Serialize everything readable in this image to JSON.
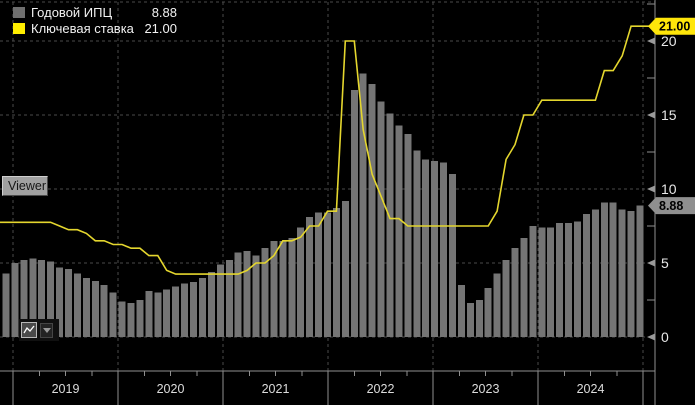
{
  "colors": {
    "background": "#000000",
    "bar": "#757575",
    "bar_swatch": "#6f6f6f",
    "rate_line": "#e4d62e",
    "rate_swatch": "#ffee00",
    "rate_badge_bg": "#ffe60a",
    "cpi_badge_bg": "#8f8f8f",
    "badge_text": "#000000",
    "gridline": "#4a4a4a",
    "axis": "#8f8f8f",
    "tick_label": "#e8e8e8",
    "year_label": "#dcdcdc"
  },
  "legend": {
    "items": [
      {
        "label": "Годовой ИПЦ",
        "value": "8.88"
      },
      {
        "label": "Ключевая ставка",
        "value": "21.00"
      }
    ]
  },
  "right_axis": {
    "rate_badge": "21.00",
    "cpi_badge": "8.88"
  },
  "tools": {
    "viewer_label": "Viewer"
  },
  "chart_data": {
    "type": "bar",
    "periodicity": "monthly",
    "start_month": "2018-12",
    "end_month": "2024-11",
    "years": [
      "2019",
      "2020",
      "2021",
      "2022",
      "2023",
      "2024"
    ],
    "y_ticks": [
      0,
      5,
      10,
      15,
      20
    ],
    "y_minor_ticks": [
      2.5,
      7.5,
      12.5,
      17.5,
      22.5
    ],
    "ylim": [
      -2.3,
      22.7
    ],
    "grid": true,
    "legend_position": "top-left",
    "series": [
      {
        "name": "Годовой ИПЦ",
        "type": "bar",
        "last_value": 8.88,
        "values": [
          4.3,
          5.0,
          5.2,
          5.3,
          5.2,
          5.1,
          4.7,
          4.6,
          4.3,
          4.0,
          3.8,
          3.5,
          3.0,
          2.4,
          2.3,
          2.5,
          3.1,
          3.0,
          3.2,
          3.4,
          3.6,
          3.7,
          4.0,
          4.4,
          4.9,
          5.2,
          5.7,
          5.8,
          5.5,
          6.0,
          6.5,
          6.5,
          6.7,
          7.4,
          8.1,
          8.4,
          8.4,
          8.7,
          9.2,
          16.7,
          17.8,
          17.1,
          15.9,
          15.1,
          14.3,
          13.7,
          12.6,
          12.0,
          11.9,
          11.8,
          11.0,
          3.5,
          2.3,
          2.5,
          3.3,
          4.3,
          5.2,
          6.0,
          6.7,
          7.5,
          7.4,
          7.4,
          7.7,
          7.7,
          7.8,
          8.3,
          8.6,
          9.1,
          9.1,
          8.6,
          8.5,
          8.88
        ]
      },
      {
        "name": "Ключевая ставка",
        "type": "line",
        "last_value": 21.0,
        "values": [
          7.75,
          7.75,
          7.75,
          7.75,
          7.75,
          7.75,
          7.5,
          7.25,
          7.25,
          7.0,
          6.5,
          6.5,
          6.25,
          6.25,
          6.0,
          6.0,
          5.5,
          5.5,
          4.5,
          4.25,
          4.25,
          4.25,
          4.25,
          4.25,
          4.25,
          4.25,
          4.25,
          4.5,
          5.0,
          5.0,
          5.5,
          6.5,
          6.5,
          6.75,
          7.5,
          7.5,
          8.5,
          8.5,
          20.0,
          20.0,
          14.0,
          11.0,
          9.5,
          8.0,
          8.0,
          7.5,
          7.5,
          7.5,
          7.5,
          7.5,
          7.5,
          7.5,
          7.5,
          7.5,
          7.5,
          8.5,
          12.0,
          13.0,
          15.0,
          15.0,
          16.0,
          16.0,
          16.0,
          16.0,
          16.0,
          16.0,
          16.0,
          18.0,
          18.0,
          19.0,
          21.0,
          21.0
        ]
      }
    ]
  }
}
